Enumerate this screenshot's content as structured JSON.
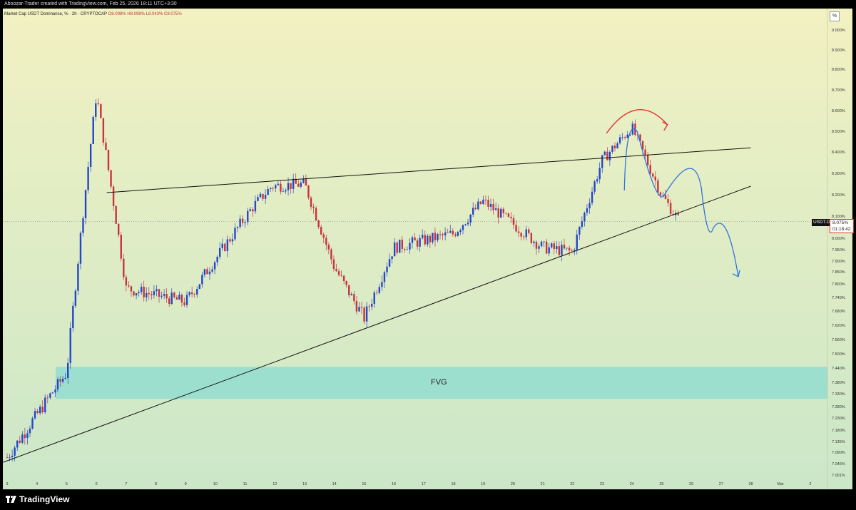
{
  "header": {
    "attribution": "Aboozar-Trader created with TradingView.com, Feb 25, 2026 18:11 UTC+3:30"
  },
  "legend": {
    "symbol": "Market Cap USDT Dominance, % · 2h · CRYPTOCAP",
    "open": "O8.098%",
    "high": "H8.098%",
    "low": "L8.043%",
    "close": "C8.075%"
  },
  "axis_unit": "%",
  "price_tag": {
    "symbol": "USDT.D",
    "value": "8.075%",
    "countdown": "01:18:42"
  },
  "zone_label": "FVG",
  "branding": "TradingView",
  "colors": {
    "up": "#2546c8",
    "down": "#c8323c",
    "bg_top": "#f2f1c2",
    "bg_bottom": "#cbe7c8",
    "fvg": "#9ddfcf",
    "drawing_red": "#e03434",
    "drawing_blue": "#2f74e0"
  },
  "chart_data": {
    "type": "candlestick",
    "x_ticks": [
      "3",
      "4",
      "5",
      "6",
      "7",
      "8",
      "9",
      "10",
      "11",
      "12",
      "13",
      "14",
      "15",
      "16",
      "17",
      "18",
      "19",
      "20",
      "21",
      "22",
      "23",
      "24",
      "25",
      "26",
      "27",
      "28",
      "Mar",
      "2"
    ],
    "y_ticks": [
      "9.000%",
      "8.900%",
      "8.800%",
      "8.700%",
      "8.600%",
      "8.500%",
      "8.400%",
      "8.300%",
      "8.200%",
      "8.100%",
      "8.000%",
      "7.950%",
      "7.900%",
      "7.850%",
      "7.800%",
      "7.740%",
      "7.680%",
      "7.620%",
      "7.560%",
      "7.500%",
      "7.440%",
      "7.380%",
      "7.330%",
      "7.280%",
      "7.230%",
      "7.180%",
      "7.135%",
      "7.090%",
      "7.045%",
      "7.001%"
    ],
    "last_close": 8.075,
    "fvg_zone": [
      7.31,
      7.445
    ],
    "key_points": [
      {
        "x": "3",
        "y": 7.07
      },
      {
        "x": "5",
        "y": 7.42
      },
      {
        "x": "6",
        "y": 8.68
      },
      {
        "x": "7",
        "y": 7.78
      },
      {
        "x": "9",
        "y": 7.72
      },
      {
        "x": "11",
        "y": 8.15
      },
      {
        "x": "12",
        "y": 8.24
      },
      {
        "x": "13",
        "y": 8.25
      },
      {
        "x": "14",
        "y": 7.87
      },
      {
        "x": "15",
        "y": 7.65
      },
      {
        "x": "16",
        "y": 7.96
      },
      {
        "x": "18",
        "y": 8.02
      },
      {
        "x": "19",
        "y": 8.17
      },
      {
        "x": "21",
        "y": 7.96
      },
      {
        "x": "22",
        "y": 7.94
      },
      {
        "x": "23",
        "y": 8.36
      },
      {
        "x": "24",
        "y": 8.52
      },
      {
        "x": "25",
        "y": 8.2
      },
      {
        "x": "25",
        "y": 8.075
      }
    ],
    "trendlines": [
      {
        "name": "resistance",
        "from": {
          "x": "6",
          "y": 8.21
        },
        "to": {
          "x": "28",
          "y": 8.42
        }
      },
      {
        "name": "support",
        "from": {
          "x": "3",
          "y": 7.05
        },
        "to": {
          "x": "28",
          "y": 8.24
        }
      }
    ],
    "projection": [
      {
        "x": "24",
        "y": 8.51
      },
      {
        "x": "25",
        "y": 8.2
      },
      {
        "x": "26",
        "y": 8.33
      },
      {
        "x": "26",
        "y": 7.99
      },
      {
        "x": "27",
        "y": 8.08
      },
      {
        "x": "28",
        "y": 7.83
      }
    ]
  }
}
